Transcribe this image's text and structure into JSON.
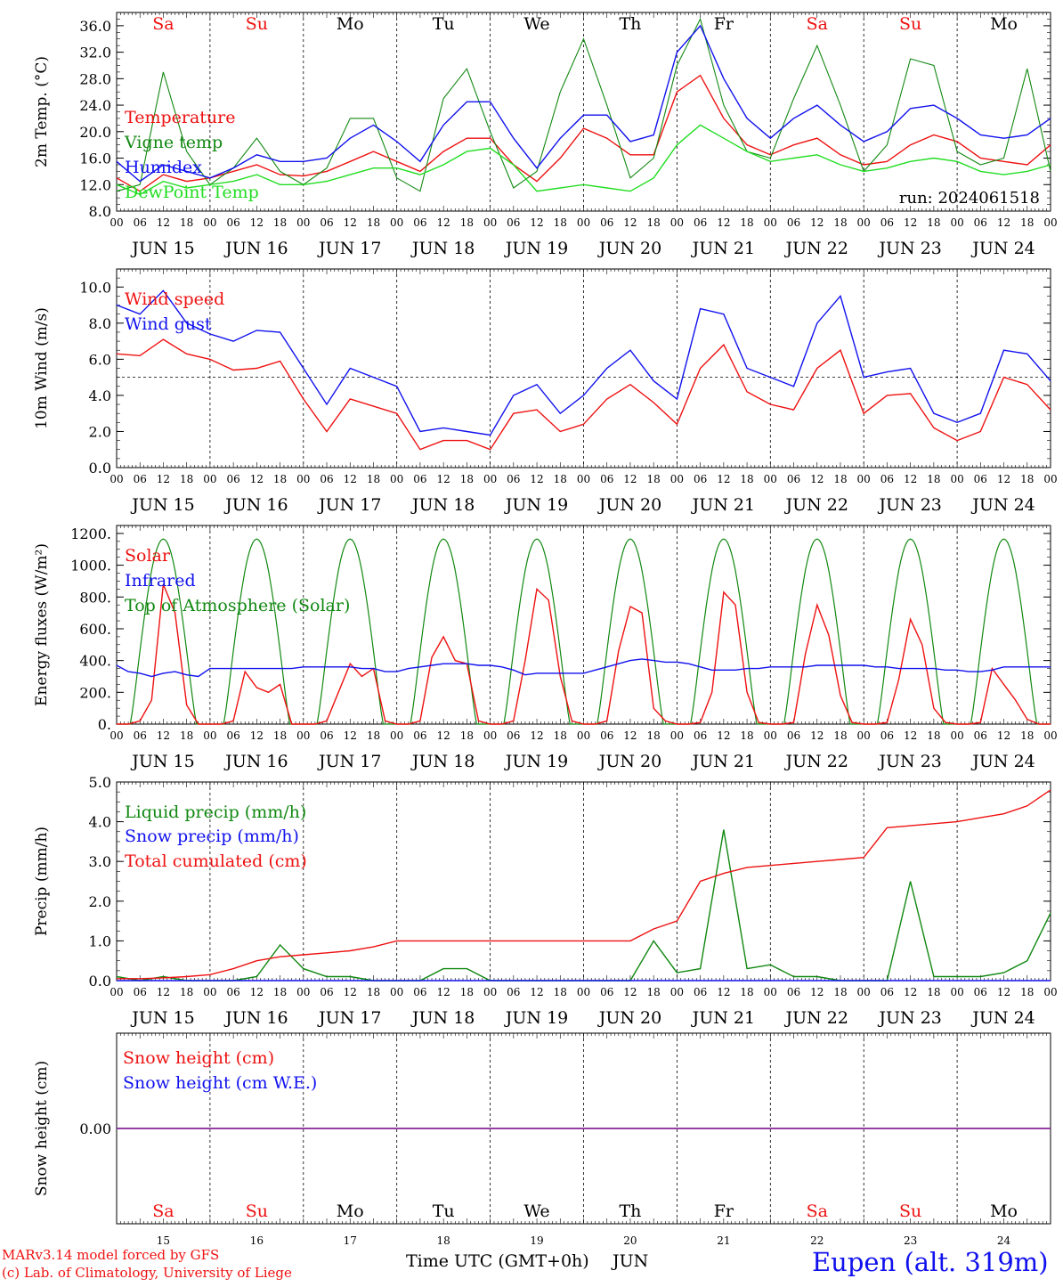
{
  "colors": {
    "red": "#ee1111",
    "green": "#118811",
    "blue": "#1111ee",
    "lime": "#22dd22",
    "purple": "#882299",
    "weekend": "#ee1111",
    "weekday": "#000000"
  },
  "days": {
    "dates": [
      "JUN 15",
      "JUN 16",
      "JUN 17",
      "JUN 18",
      "JUN 19",
      "JUN 20",
      "JUN 21",
      "JUN 22",
      "JUN 23",
      "JUN 24"
    ],
    "weekdays": [
      "Sa",
      "Su",
      "Mo",
      "Tu",
      "We",
      "Th",
      "Fr",
      "Sa",
      "Su",
      "Mo"
    ],
    "weekend": [
      true,
      true,
      false,
      false,
      false,
      false,
      false,
      true,
      true,
      false
    ],
    "day_numbers": [
      "15",
      "16",
      "17",
      "18",
      "19",
      "20",
      "21",
      "22",
      "23",
      "24"
    ],
    "hour_ticks": [
      "00",
      "06",
      "12",
      "18"
    ],
    "final_tick": "00"
  },
  "chart_data": [
    {
      "type": "line",
      "ylabel": "2m Temp. (°C)",
      "ylim": [
        8,
        38
      ],
      "yticks": [
        "8.0",
        "12.0",
        "16.0",
        "20.0",
        "24.0",
        "28.0",
        "32.0",
        "36.0"
      ],
      "annotation": "run: 2024061518",
      "x_hours": [
        0,
        6,
        12,
        18,
        24,
        30,
        36,
        42,
        48,
        54,
        60,
        66,
        72,
        78,
        84,
        90,
        96,
        102,
        108,
        114,
        120,
        126,
        132,
        138,
        144,
        150,
        156,
        162,
        168,
        174,
        180,
        186,
        192,
        198,
        204,
        210,
        216,
        222,
        228,
        234,
        240
      ],
      "series": [
        {
          "name": "Temperature",
          "color": "red",
          "values": [
            13,
            11,
            13.5,
            12.5,
            13,
            14,
            15,
            13.5,
            13.3,
            14,
            15.5,
            17,
            15.5,
            14,
            17,
            19,
            19,
            15,
            12.5,
            16,
            20.5,
            19,
            16.5,
            16.5,
            26,
            28.5,
            22,
            18,
            16.5,
            18,
            19,
            16.5,
            15,
            15.5,
            18,
            19.5,
            18.5,
            16,
            15.5,
            15,
            18
          ]
        },
        {
          "name": "Vigne temp",
          "color": "green",
          "values": [
            11,
            12,
            29,
            17,
            12,
            14.5,
            19,
            14,
            12,
            14.5,
            22,
            22,
            13,
            11,
            25,
            29.5,
            20,
            11.5,
            14,
            26,
            34,
            24,
            13,
            16,
            30,
            37,
            24,
            17,
            16,
            25,
            33,
            24,
            14,
            18,
            31,
            30,
            17,
            15,
            16,
            29.5,
            14
          ]
        },
        {
          "name": "Humidex",
          "color": "blue",
          "values": [
            15.5,
            12.5,
            15,
            14,
            13,
            14.5,
            16.5,
            15.5,
            15.5,
            16,
            19,
            21,
            18.5,
            15.5,
            21,
            24.5,
            24.5,
            19,
            14.5,
            19,
            22.5,
            22.5,
            18.5,
            19.5,
            32,
            36,
            28,
            22,
            19,
            22,
            24,
            21,
            18.5,
            20,
            23.5,
            24,
            22,
            19.5,
            19,
            19.5,
            22
          ]
        },
        {
          "name": "DewPoint Temp",
          "color": "lime",
          "values": [
            12,
            10.5,
            12.5,
            11.5,
            12,
            12.5,
            13.5,
            12,
            12,
            12.5,
            13.5,
            14.5,
            14.5,
            13.5,
            15,
            17,
            17.5,
            15,
            11,
            11.5,
            12,
            11.5,
            11,
            13,
            18,
            21,
            19,
            17,
            15.5,
            16,
            16.5,
            15,
            14,
            14.5,
            15.5,
            16,
            15.5,
            14,
            13.5,
            14,
            15
          ]
        }
      ]
    },
    {
      "type": "line",
      "ylabel": "10m Wind (m/s)",
      "ylim": [
        0,
        11
      ],
      "yticks": [
        "0.0",
        "2.0",
        "4.0",
        "6.0",
        "8.0",
        "10.0"
      ],
      "reference_line": 5,
      "x_hours": [
        0,
        6,
        12,
        18,
        24,
        30,
        36,
        42,
        48,
        54,
        60,
        66,
        72,
        78,
        84,
        90,
        96,
        102,
        108,
        114,
        120,
        126,
        132,
        138,
        144,
        150,
        156,
        162,
        168,
        174,
        180,
        186,
        192,
        198,
        204,
        210,
        216,
        222,
        228,
        234,
        240
      ],
      "series": [
        {
          "name": "Wind speed",
          "color": "red",
          "values": [
            6.3,
            6.2,
            7.1,
            6.3,
            6.0,
            5.4,
            5.5,
            5.9,
            3.8,
            2.0,
            3.8,
            3.4,
            3.0,
            1.0,
            1.5,
            1.5,
            1.0,
            3.0,
            3.2,
            2.0,
            2.4,
            3.8,
            4.6,
            3.6,
            2.4,
            5.5,
            6.8,
            4.2,
            3.5,
            3.2,
            5.5,
            6.5,
            3.0,
            4.0,
            4.1,
            2.2,
            1.5,
            2.0,
            5.0,
            4.6,
            3.2
          ]
        },
        {
          "name": "Wind gust",
          "color": "blue",
          "values": [
            9.0,
            8.5,
            9.8,
            8.0,
            7.4,
            7.0,
            7.6,
            7.5,
            5.5,
            3.5,
            5.5,
            5.0,
            4.5,
            2.0,
            2.2,
            2.0,
            1.8,
            4.0,
            4.6,
            3.0,
            4.0,
            5.5,
            6.5,
            4.8,
            3.8,
            8.8,
            8.5,
            5.5,
            5.0,
            4.5,
            8.0,
            9.5,
            5.0,
            5.3,
            5.5,
            3.0,
            2.5,
            3.0,
            6.5,
            6.3,
            4.8
          ]
        }
      ]
    },
    {
      "type": "line",
      "ylabel": "Energy fluxes (W/m²)",
      "ylim": [
        0,
        1250
      ],
      "yticks": [
        "0.",
        "200.",
        "400.",
        "600.",
        "800.",
        "1000.",
        "1200."
      ],
      "x_hours": [
        0,
        3,
        6,
        9,
        12,
        15,
        18,
        21,
        24,
        27,
        30,
        33,
        36,
        39,
        42,
        45,
        48,
        51,
        54,
        57,
        60,
        63,
        66,
        69,
        72,
        75,
        78,
        81,
        84,
        87,
        90,
        93,
        96,
        99,
        102,
        105,
        108,
        111,
        114,
        117,
        120,
        123,
        126,
        129,
        132,
        135,
        138,
        141,
        144,
        147,
        150,
        153,
        156,
        159,
        162,
        165,
        168,
        171,
        174,
        177,
        180,
        183,
        186,
        189,
        192,
        195,
        198,
        201,
        204,
        207,
        210,
        213,
        216,
        219,
        222,
        225,
        228,
        231,
        234,
        237,
        240
      ],
      "series": [
        {
          "name": "Solar",
          "color": "red",
          "values": [
            0,
            0,
            20,
            150,
            880,
            700,
            120,
            0,
            0,
            0,
            20,
            330,
            230,
            200,
            250,
            0,
            0,
            0,
            20,
            200,
            380,
            300,
            350,
            20,
            0,
            0,
            20,
            420,
            550,
            400,
            380,
            20,
            0,
            0,
            20,
            400,
            850,
            780,
            300,
            20,
            0,
            0,
            20,
            460,
            740,
            700,
            100,
            20,
            0,
            0,
            10,
            200,
            830,
            750,
            200,
            10,
            0,
            0,
            10,
            440,
            750,
            560,
            180,
            10,
            0,
            0,
            10,
            280,
            660,
            500,
            100,
            10,
            0,
            0,
            10,
            350,
            250,
            150,
            30,
            0,
            0
          ]
        },
        {
          "name": "Infrared",
          "color": "blue",
          "values": [
            370,
            330,
            320,
            300,
            320,
            330,
            310,
            300,
            350,
            350,
            350,
            350,
            350,
            350,
            350,
            350,
            360,
            360,
            360,
            360,
            360,
            350,
            350,
            330,
            330,
            350,
            360,
            370,
            380,
            380,
            380,
            370,
            370,
            360,
            340,
            310,
            320,
            320,
            320,
            320,
            320,
            340,
            360,
            380,
            400,
            410,
            400,
            390,
            390,
            380,
            360,
            340,
            340,
            340,
            350,
            350,
            360,
            360,
            360,
            360,
            370,
            370,
            370,
            370,
            370,
            360,
            360,
            350,
            350,
            350,
            350,
            340,
            340,
            330,
            330,
            340,
            360,
            360,
            360,
            360,
            360
          ]
        },
        {
          "name": "Top of Atmosphere (Solar)",
          "color": "green",
          "values": []
        }
      ]
    },
    {
      "type": "line",
      "ylabel": "Precip (mm/h)",
      "ylim": [
        0,
        5
      ],
      "yticks": [
        "0.0",
        "1.0",
        "2.0",
        "3.0",
        "4.0",
        "5.0"
      ],
      "x_hours": [
        0,
        6,
        12,
        18,
        24,
        30,
        36,
        42,
        48,
        54,
        60,
        66,
        72,
        78,
        84,
        90,
        96,
        102,
        108,
        114,
        120,
        126,
        132,
        138,
        144,
        150,
        156,
        162,
        168,
        174,
        180,
        186,
        192,
        198,
        204,
        210,
        216,
        222,
        228,
        234,
        240
      ],
      "series": [
        {
          "name": "Liquid precip (mm/h)",
          "color": "green",
          "values": [
            0.1,
            0,
            0.1,
            0,
            0,
            0,
            0.1,
            0.9,
            0.3,
            0.1,
            0.1,
            0,
            0,
            0,
            0.3,
            0.3,
            0,
            0,
            0,
            0,
            0,
            0,
            0,
            1.0,
            0.2,
            0.3,
            3.8,
            0.3,
            0.4,
            0.1,
            0.1,
            0,
            0,
            0,
            2.5,
            0.1,
            0.1,
            0.1,
            0.2,
            0.5,
            1.7
          ]
        },
        {
          "name": "Snow precip (mm/h)",
          "color": "blue",
          "values": [
            0,
            0,
            0,
            0,
            0,
            0,
            0,
            0,
            0,
            0,
            0,
            0,
            0,
            0,
            0,
            0,
            0,
            0,
            0,
            0,
            0,
            0,
            0,
            0,
            0,
            0,
            0,
            0,
            0,
            0,
            0,
            0,
            0,
            0,
            0,
            0,
            0,
            0,
            0,
            0,
            0
          ]
        },
        {
          "name": "Total cumulated (cm)",
          "color": "red",
          "values": [
            0.05,
            0.05,
            0.07,
            0.1,
            0.15,
            0.3,
            0.5,
            0.6,
            0.65,
            0.7,
            0.75,
            0.85,
            1.0,
            1.0,
            1.0,
            1.0,
            1.0,
            1.0,
            1.0,
            1.0,
            1.0,
            1.0,
            1.0,
            1.3,
            1.5,
            2.5,
            2.7,
            2.85,
            2.9,
            2.95,
            3.0,
            3.05,
            3.1,
            3.85,
            3.9,
            3.95,
            4.0,
            4.1,
            4.2,
            4.4,
            4.8
          ]
        }
      ]
    },
    {
      "type": "line",
      "ylabel": "Snow height (cm)",
      "ylim": [
        -1,
        1
      ],
      "yticks": [
        "0.00"
      ],
      "x_hours": [
        0,
        240
      ],
      "series": [
        {
          "name": "Snow height (cm)",
          "color": "red",
          "values": [
            0,
            0
          ]
        },
        {
          "name": "Snow height (cm W.E.)",
          "color": "blue",
          "values": [
            0,
            0
          ]
        }
      ]
    }
  ],
  "footer": {
    "xlabel": "Time UTC (GMT+0h)",
    "month": "JUN",
    "credit1": "MARv3.14 model forced by GFS",
    "credit2": "(c) Lab. of Climatology, University of Liege",
    "station": "Eupen (alt. 319m)"
  }
}
